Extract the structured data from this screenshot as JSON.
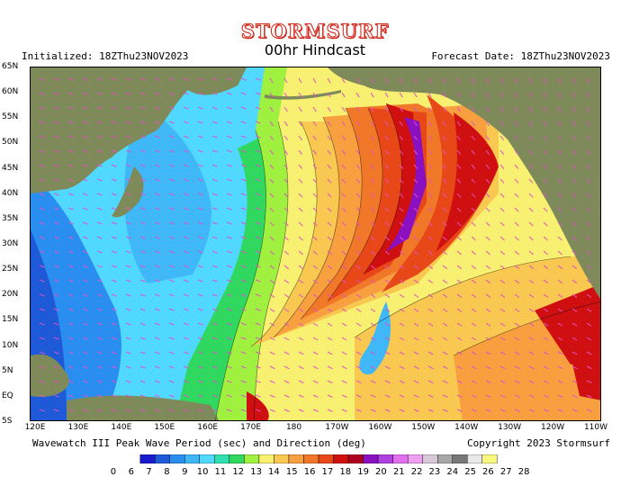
{
  "header": {
    "logo": "STORMSURF",
    "subtitle": "00hr Hindcast",
    "initialized": "Initialized: 18ZThu23NOV2023",
    "forecast_date": "Forecast Date: 18ZThu23NOV2023"
  },
  "footer": {
    "description": "Wavewatch III Peak Wave Period (sec) and Direction (deg)",
    "copyright": "Copyright 2023 Stormsurf"
  },
  "axes": {
    "lat_labels": [
      "65N",
      "60N",
      "55N",
      "50N",
      "45N",
      "40N",
      "35N",
      "30N",
      "25N",
      "20N",
      "15N",
      "10N",
      "5N",
      "EQ",
      "5S"
    ],
    "lon_labels": [
      "120E",
      "130E",
      "140E",
      "150E",
      "160E",
      "170E",
      "180",
      "170W",
      "160W",
      "150W",
      "140W",
      "130W",
      "120W",
      "110W"
    ]
  },
  "colorbar": {
    "labels": [
      "0",
      "6",
      "7",
      "8",
      "9",
      "10",
      "11",
      "12",
      "13",
      "14",
      "15",
      "16",
      "17",
      "18",
      "19",
      "20",
      "21",
      "22",
      "23",
      "24",
      "25",
      "26",
      "27",
      "28"
    ],
    "colors": [
      "#1a1acf",
      "#1e5ad8",
      "#2a8ef0",
      "#40b8f8",
      "#50d8ff",
      "#30e0b0",
      "#30d860",
      "#a0f040",
      "#f8f070",
      "#f8c850",
      "#f8a040",
      "#f07828",
      "#e84818",
      "#d01010",
      "#b00020",
      "#8a10c0",
      "#b040e0",
      "#e070f0",
      "#f0a0f0",
      "#d8c8d8",
      "#a8a8a8",
      "#787878",
      "#e8e8e8",
      "#f8f880"
    ]
  },
  "map": {
    "land_color": "#7f8a5a",
    "vector_color": "#e050c8"
  }
}
